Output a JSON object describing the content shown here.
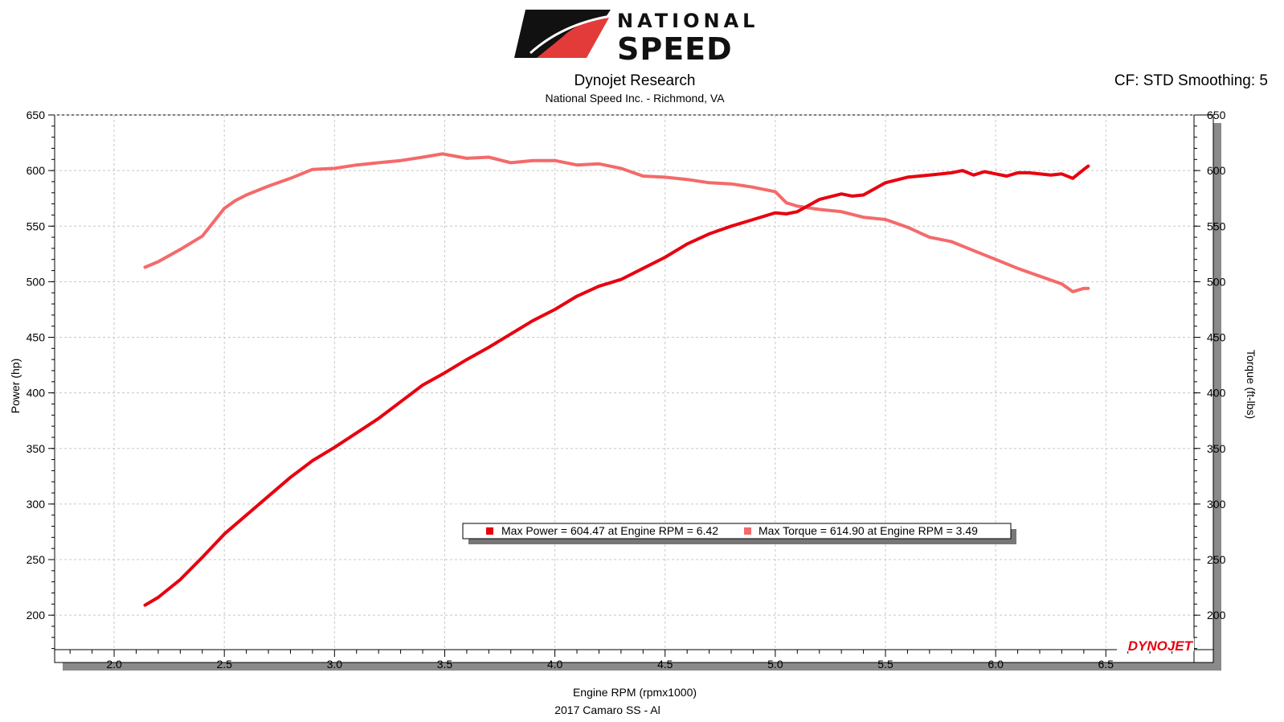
{
  "header": {
    "logo_text_top": "NATIONAL",
    "logo_text_bottom": "SPEED",
    "title": "Dynojet Research",
    "subtitle": "National Speed Inc. - Richmond, VA",
    "correction": "CF: STD Smoothing: 5",
    "brand_mark": "DYNOJET"
  },
  "footer": {
    "run_label": "2017 Camaro SS - Al"
  },
  "colors": {
    "power": "#e8000f",
    "torque": "#f46a6a",
    "grid": "#c8c8c8",
    "logo_red": "#e33a3a"
  },
  "chart_data": {
    "type": "line",
    "xlabel": "Engine RPM (rpmx1000)",
    "ylabel": "Power (hp)",
    "y2label": "Torque (ft-lbs)",
    "xlim": [
      1.73,
      6.9
    ],
    "ylim": [
      169,
      650
    ],
    "xticks": [
      "2.0",
      "2.5",
      "3.0",
      "3.5",
      "4.0",
      "4.5",
      "5.0",
      "5.5",
      "6.0",
      "6.5"
    ],
    "yticks": [
      "200",
      "250",
      "300",
      "350",
      "400",
      "450",
      "500",
      "550",
      "600",
      "650"
    ],
    "grid": true,
    "legend": {
      "placement": "center",
      "entries": [
        "Max Power = 604.47 at Engine RPM = 6.42",
        "Max Torque = 614.90 at Engine RPM = 3.49"
      ]
    },
    "series": [
      {
        "name": "Max Power",
        "x": [
          2.14,
          2.2,
          2.3,
          2.4,
          2.5,
          2.6,
          2.7,
          2.8,
          2.9,
          3.0,
          3.1,
          3.2,
          3.3,
          3.4,
          3.5,
          3.6,
          3.7,
          3.8,
          3.9,
          4.0,
          4.1,
          4.2,
          4.3,
          4.4,
          4.5,
          4.6,
          4.7,
          4.8,
          4.9,
          5.0,
          5.05,
          5.1,
          5.2,
          5.3,
          5.35,
          5.4,
          5.5,
          5.6,
          5.7,
          5.8,
          5.85,
          5.9,
          5.95,
          6.0,
          6.05,
          6.1,
          6.15,
          6.2,
          6.25,
          6.3,
          6.35,
          6.4,
          6.42
        ],
        "values": [
          209,
          216,
          232,
          252,
          273,
          290,
          307,
          324,
          339,
          351,
          364,
          377,
          392,
          407,
          418,
          430,
          441,
          453,
          465,
          475,
          487,
          496,
          502,
          512,
          522,
          534,
          543,
          550,
          556,
          562,
          561,
          563,
          574,
          579,
          577,
          578,
          589,
          594,
          596,
          598,
          600,
          596,
          599,
          597,
          595,
          598,
          598,
          597,
          596,
          597,
          593,
          601,
          604
        ]
      },
      {
        "name": "Max Torque",
        "x": [
          2.14,
          2.2,
          2.3,
          2.4,
          2.5,
          2.55,
          2.6,
          2.7,
          2.8,
          2.9,
          3.0,
          3.1,
          3.2,
          3.3,
          3.4,
          3.49,
          3.6,
          3.7,
          3.8,
          3.9,
          4.0,
          4.1,
          4.2,
          4.3,
          4.4,
          4.5,
          4.6,
          4.7,
          4.8,
          4.9,
          5.0,
          5.05,
          5.1,
          5.2,
          5.3,
          5.4,
          5.5,
          5.6,
          5.7,
          5.8,
          5.9,
          6.0,
          6.1,
          6.2,
          6.3,
          6.35,
          6.4,
          6.42
        ],
        "values": [
          513,
          518,
          529,
          541,
          566,
          573,
          578,
          586,
          593,
          601,
          602,
          605,
          607,
          609,
          612,
          615,
          611,
          612,
          607,
          609,
          609,
          605,
          606,
          602,
          595,
          594,
          592,
          589,
          588,
          585,
          581,
          571,
          568,
          565,
          563,
          558,
          556,
          549,
          540,
          536,
          528,
          520,
          512,
          505,
          498,
          491,
          494,
          494
        ]
      }
    ]
  }
}
